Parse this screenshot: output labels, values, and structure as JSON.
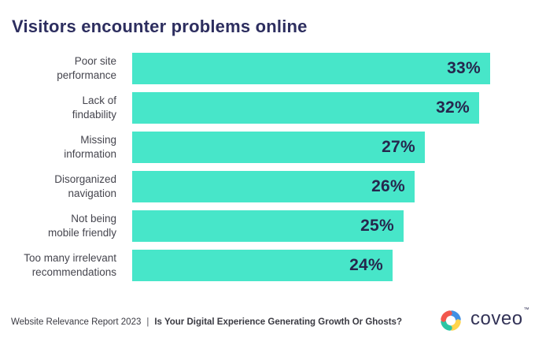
{
  "page": {
    "background": "#ffffff"
  },
  "chart_data": {
    "type": "bar",
    "orientation": "horizontal",
    "title": "Visitors encounter problems online",
    "categories": [
      "Poor site performance",
      "Lack of findability",
      "Missing information",
      "Disorganized navigation",
      "Not being mobile friendly",
      "Too many irrelevant recommendations"
    ],
    "category_lines": [
      [
        "Poor site",
        "performance"
      ],
      [
        "Lack of",
        "findability"
      ],
      [
        "Missing",
        "information"
      ],
      [
        "Disorganized",
        "navigation"
      ],
      [
        "Not being",
        "mobile friendly"
      ],
      [
        "Too many irrelevant",
        "recommendations"
      ]
    ],
    "values": [
      33,
      32,
      27,
      26,
      25,
      24
    ],
    "value_labels": [
      "33%",
      "32%",
      "27%",
      "26%",
      "25%",
      "24%"
    ],
    "unit": "%",
    "xlim": [
      0,
      33
    ],
    "grid": false,
    "legend": false,
    "bar_color": "#47e6c9",
    "value_label_color": "#26264d",
    "title_color": "#2d2e5f"
  },
  "footer": {
    "report": "Website Relevance Report 2023",
    "separator": "|",
    "tagline": "Is Your Digital Experience Generating Growth Or Ghosts?"
  },
  "logo": {
    "wordmark": "coveo",
    "trademark": "™",
    "colors": {
      "red": "#f2574d",
      "blue": "#4190e3",
      "teal": "#2bc5a4",
      "yellow": "#ffd44b",
      "wordmark_color": "#333357"
    }
  }
}
